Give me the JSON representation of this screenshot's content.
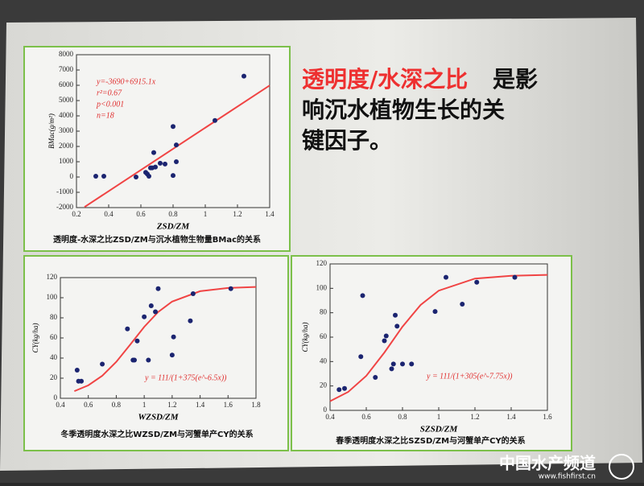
{
  "slide": {
    "headline_red": "透明度/水深之比",
    "headline_lines": [
      "是影",
      "响沉水植物生长的关",
      "键因子。"
    ]
  },
  "watermark": {
    "name": "中国水产频道",
    "url": "www.fishfirst.cn"
  },
  "chart_data": [
    {
      "type": "scatter",
      "caption": "透明度-水深之比ZSD/ZM与沉水植物生物量BMac的关系",
      "xlabel": "ZSD/ZM",
      "ylabel": "BMac(g/m²)",
      "annotations": [
        "y=-3690+6915.1x",
        "r²=0.67",
        "p<0.001",
        "n=18"
      ],
      "x": [
        0.32,
        0.37,
        0.57,
        0.63,
        0.64,
        0.65,
        0.66,
        0.67,
        0.68,
        0.69,
        0.72,
        0.75,
        0.8,
        0.8,
        0.82,
        0.82,
        1.06,
        1.24
      ],
      "values": [
        50,
        50,
        0,
        300,
        200,
        50,
        600,
        600,
        1600,
        650,
        900,
        850,
        100,
        3300,
        2100,
        1000,
        3700,
        6600
      ],
      "color": "#1b2470",
      "fit": {
        "color": "#f04444",
        "x": [
          0.25,
          1.4
        ],
        "y": [
          -1960,
          5991
        ]
      },
      "xlim": [
        0.2,
        1.4
      ],
      "xticks": [
        0.2,
        0.4,
        0.6,
        0.8,
        1.0,
        1.2,
        1.4
      ],
      "ylim": [
        -2000,
        8000
      ],
      "yticks": [
        -2000,
        -1000,
        0,
        1000,
        2000,
        3000,
        4000,
        5000,
        6000,
        7000,
        8000
      ]
    },
    {
      "type": "scatter",
      "caption": "冬季透明度水深之比WZSD/ZM与河蟹单产CY的关系",
      "xlabel": "WZSD/ZM",
      "ylabel": "CY(kg/ha)",
      "annotations": [
        "y = 111/(1+375(e^-6.5x))"
      ],
      "x": [
        0.52,
        0.53,
        0.55,
        0.7,
        0.88,
        0.92,
        0.93,
        0.95,
        1.0,
        1.03,
        1.05,
        1.08,
        1.1,
        1.2,
        1.21,
        1.33,
        1.35,
        1.62
      ],
      "values": [
        28,
        17,
        17,
        34,
        69,
        38,
        38,
        57,
        81,
        38,
        92,
        86,
        109,
        43,
        61,
        77,
        104,
        109
      ],
      "color": "#1b2470",
      "fit": {
        "color": "#f04444",
        "x": [
          0.5,
          0.6,
          0.7,
          0.8,
          0.9,
          1.0,
          1.1,
          1.2,
          1.4,
          1.6,
          1.8
        ],
        "y": [
          7.1,
          12.9,
          22.4,
          36.2,
          53.4,
          71,
          85.8,
          96.2,
          106.5,
          109.7,
          110.7
        ]
      },
      "xlim": [
        0.4,
        1.8
      ],
      "xticks": [
        0.4,
        0.6,
        0.8,
        1.0,
        1.2,
        1.4,
        1.6,
        1.8
      ],
      "ylim": [
        0,
        120
      ],
      "yticks": [
        0,
        20,
        40,
        60,
        80,
        100,
        120
      ]
    },
    {
      "type": "scatter",
      "caption": "春季透明度水深之比SZSD/ZM与河蟹单产CY的关系",
      "xlabel": "SZSD/ZM",
      "ylabel": "CY(kg/ha)",
      "annotations": [
        "y = 111/(1+305(e^-7.75x))"
      ],
      "x": [
        0.45,
        0.48,
        0.57,
        0.58,
        0.65,
        0.7,
        0.71,
        0.74,
        0.75,
        0.76,
        0.77,
        0.8,
        0.85,
        0.98,
        1.04,
        1.13,
        1.21,
        1.42
      ],
      "values": [
        17,
        18,
        44,
        94,
        27,
        57,
        61,
        34,
        38,
        78,
        69,
        38,
        38,
        81,
        109,
        87,
        105,
        109
      ],
      "color": "#1b2470",
      "fit": {
        "color": "#f04444",
        "x": [
          0.4,
          0.5,
          0.6,
          0.7,
          0.8,
          0.9,
          1.0,
          1.2,
          1.4,
          1.6
        ],
        "y": [
          7.5,
          15.1,
          28.3,
          47.4,
          68.6,
          86.4,
          98.1,
          108,
          110.3,
          111
        ]
      },
      "xlim": [
        0.4,
        1.6
      ],
      "xticks": [
        0.4,
        0.6,
        0.8,
        1.0,
        1.2,
        1.4,
        1.6
      ],
      "ylim": [
        0,
        120
      ],
      "yticks": [
        0,
        20,
        40,
        60,
        80,
        100,
        120
      ]
    }
  ]
}
